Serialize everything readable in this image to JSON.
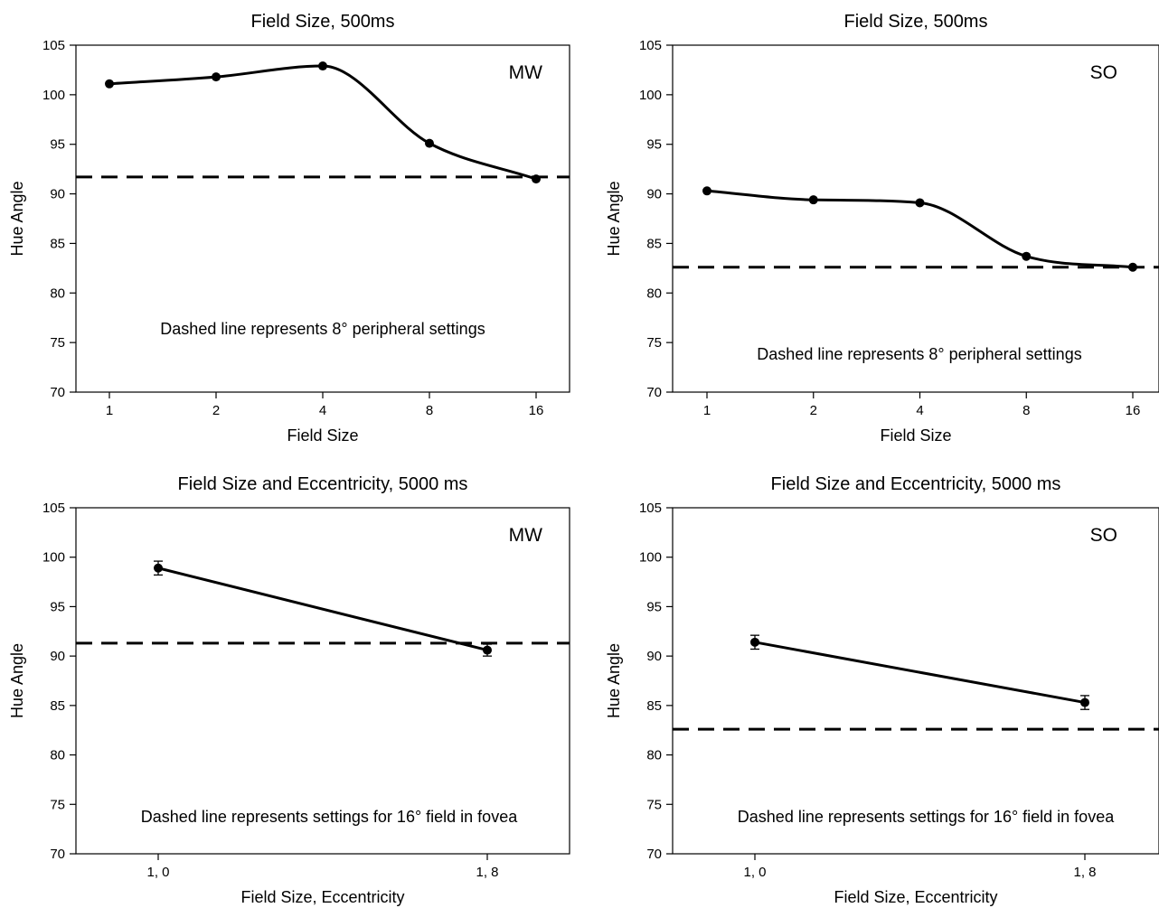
{
  "chart_data": [
    {
      "type": "line",
      "id": "mw-500",
      "title": "Field Size, 500ms",
      "xlabel": "Field Size",
      "ylabel": "Hue Angle",
      "categories": [
        "1",
        "2",
        "4",
        "8",
        "16"
      ],
      "x_scale": "log2",
      "x": [
        1,
        2,
        4,
        8,
        16
      ],
      "series": [
        {
          "values": [
            101.1,
            101.8,
            102.9,
            95.1,
            91.5
          ],
          "smooth": true,
          "errors": null
        }
      ],
      "ylim": [
        70,
        105
      ],
      "yticks": [
        70,
        75,
        80,
        85,
        90,
        95,
        100,
        105
      ],
      "reference_line": {
        "y": 91.7,
        "style": "dashed"
      },
      "annotation": "Dashed line represents 8° peripheral settings",
      "panel_tag": "MW",
      "grid": false
    },
    {
      "type": "line",
      "id": "so-500",
      "title": "Field Size, 500ms",
      "xlabel": "Field Size",
      "ylabel": "Hue Angle",
      "categories": [
        "1",
        "2",
        "4",
        "8",
        "16"
      ],
      "x_scale": "log2",
      "x": [
        1,
        2,
        4,
        8,
        16
      ],
      "series": [
        {
          "values": [
            90.3,
            89.4,
            89.1,
            83.7,
            82.6
          ],
          "smooth": true,
          "errors": null
        }
      ],
      "ylim": [
        70,
        105
      ],
      "yticks": [
        70,
        75,
        80,
        85,
        90,
        95,
        100,
        105
      ],
      "reference_line": {
        "y": 82.6,
        "style": "dashed"
      },
      "annotation": "Dashed line represents 8° peripheral settings",
      "panel_tag": "SO",
      "grid": false
    },
    {
      "type": "line",
      "id": "mw-5000",
      "title": "Field Size and Eccentricity, 5000 ms",
      "xlabel": "Field Size, Eccentricity",
      "ylabel": "Hue Angle",
      "categories": [
        "1, 0",
        "1, 8"
      ],
      "x_scale": "category",
      "series": [
        {
          "values": [
            98.9,
            90.6
          ],
          "smooth": false,
          "errors": [
            0.7,
            0.6
          ]
        }
      ],
      "ylim": [
        70,
        105
      ],
      "yticks": [
        70,
        75,
        80,
        85,
        90,
        95,
        100,
        105
      ],
      "reference_line": {
        "y": 91.3,
        "style": "dashed"
      },
      "annotation": "Dashed line represents settings for 16° field in fovea",
      "panel_tag": "MW",
      "grid": false
    },
    {
      "type": "line",
      "id": "so-5000",
      "title": "Field Size and Eccentricity, 5000 ms",
      "xlabel": "Field Size, Eccentricity",
      "ylabel": "Hue Angle",
      "categories": [
        "1, 0",
        "1, 8"
      ],
      "x_scale": "category",
      "series": [
        {
          "values": [
            91.4,
            85.3
          ],
          "smooth": false,
          "errors": [
            0.7,
            0.7
          ]
        }
      ],
      "ylim": [
        70,
        105
      ],
      "yticks": [
        70,
        75,
        80,
        85,
        90,
        95,
        100,
        105
      ],
      "reference_line": {
        "y": 82.6,
        "style": "dashed"
      },
      "annotation": "Dashed line represents settings for 16° field in fovea",
      "panel_tag": "SO",
      "grid": false
    }
  ]
}
